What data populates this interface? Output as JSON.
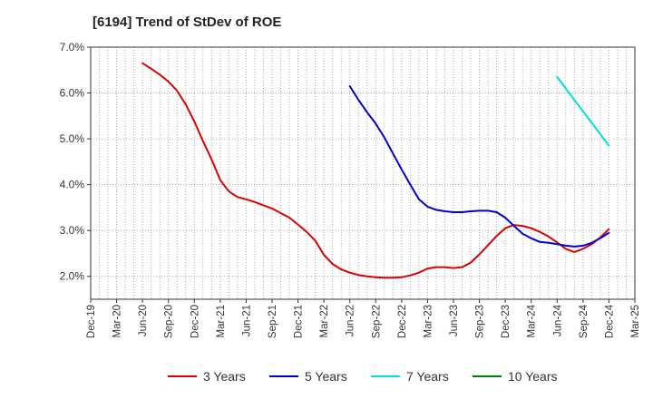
{
  "chart_data": {
    "type": "line",
    "title": "[6194]  Trend of StDev of ROE",
    "y_ticks": [
      "2.0%",
      "3.0%",
      "4.0%",
      "5.0%",
      "6.0%",
      "7.0%"
    ],
    "ylim": [
      1.5,
      7.0
    ],
    "x_ticks": [
      "Dec-19",
      "Mar-20",
      "Jun-20",
      "Sep-20",
      "Dec-20",
      "Mar-21",
      "Jun-21",
      "Sep-21",
      "Dec-21",
      "Mar-22",
      "Jun-22",
      "Sep-22",
      "Dec-22",
      "Mar-23",
      "Jun-23",
      "Sep-23",
      "Dec-23",
      "Mar-24",
      "Jun-24",
      "Sep-24",
      "Dec-24",
      "Mar-25"
    ],
    "grid": true,
    "legend_position": "bottom",
    "series": [
      {
        "name": "3 Years",
        "color": "#dd0000",
        "values": [
          [
            "Jun-20",
            6.65
          ],
          [
            "Jul-20",
            6.53
          ],
          [
            "Aug-20",
            6.4
          ],
          [
            "Sep-20",
            6.25
          ],
          [
            "Oct-20",
            6.05
          ],
          [
            "Nov-20",
            5.75
          ],
          [
            "Dec-20",
            5.38
          ],
          [
            "Jan-21",
            4.95
          ],
          [
            "Feb-21",
            4.55
          ],
          [
            "Mar-21",
            4.1
          ],
          [
            "Apr-21",
            3.85
          ],
          [
            "May-21",
            3.73
          ],
          [
            "Jun-21",
            3.68
          ],
          [
            "Jul-21",
            3.62
          ],
          [
            "Aug-21",
            3.55
          ],
          [
            "Sep-21",
            3.48
          ],
          [
            "Oct-21",
            3.38
          ],
          [
            "Nov-21",
            3.28
          ],
          [
            "Dec-21",
            3.13
          ],
          [
            "Jan-22",
            2.97
          ],
          [
            "Feb-22",
            2.78
          ],
          [
            "Mar-22",
            2.47
          ],
          [
            "Apr-22",
            2.27
          ],
          [
            "May-22",
            2.15
          ],
          [
            "Jun-22",
            2.08
          ],
          [
            "Jul-22",
            2.03
          ],
          [
            "Aug-22",
            2.0
          ],
          [
            "Sep-22",
            1.98
          ],
          [
            "Oct-22",
            1.97
          ],
          [
            "Nov-22",
            1.97
          ],
          [
            "Dec-22",
            1.98
          ],
          [
            "Jan-23",
            2.02
          ],
          [
            "Feb-23",
            2.08
          ],
          [
            "Mar-23",
            2.17
          ],
          [
            "Apr-23",
            2.2
          ],
          [
            "May-23",
            2.2
          ],
          [
            "Jun-23",
            2.18
          ],
          [
            "Jul-23",
            2.2
          ],
          [
            "Aug-23",
            2.3
          ],
          [
            "Sep-23",
            2.48
          ],
          [
            "Oct-23",
            2.68
          ],
          [
            "Nov-23",
            2.88
          ],
          [
            "Dec-23",
            3.05
          ],
          [
            "Jan-24",
            3.12
          ],
          [
            "Feb-24",
            3.1
          ],
          [
            "Mar-24",
            3.05
          ],
          [
            "Apr-24",
            2.97
          ],
          [
            "May-24",
            2.87
          ],
          [
            "Jun-24",
            2.74
          ],
          [
            "Jul-24",
            2.6
          ],
          [
            "Aug-24",
            2.53
          ],
          [
            "Sep-24",
            2.6
          ],
          [
            "Oct-24",
            2.7
          ],
          [
            "Nov-24",
            2.85
          ],
          [
            "Dec-24",
            3.03
          ]
        ]
      },
      {
        "name": "5 Years",
        "color": "#0000cc",
        "values": [
          [
            "Jun-22",
            6.15
          ],
          [
            "Jul-22",
            5.85
          ],
          [
            "Aug-22",
            5.58
          ],
          [
            "Sep-22",
            5.33
          ],
          [
            "Oct-22",
            5.03
          ],
          [
            "Nov-22",
            4.68
          ],
          [
            "Dec-22",
            4.33
          ],
          [
            "Jan-23",
            4.0
          ],
          [
            "Feb-23",
            3.68
          ],
          [
            "Mar-23",
            3.52
          ],
          [
            "Apr-23",
            3.45
          ],
          [
            "May-23",
            3.42
          ],
          [
            "Jun-23",
            3.4
          ],
          [
            "Jul-23",
            3.4
          ],
          [
            "Aug-23",
            3.42
          ],
          [
            "Sep-23",
            3.43
          ],
          [
            "Oct-23",
            3.43
          ],
          [
            "Nov-23",
            3.4
          ],
          [
            "Dec-23",
            3.28
          ],
          [
            "Jan-24",
            3.1
          ],
          [
            "Feb-24",
            2.93
          ],
          [
            "Mar-24",
            2.83
          ],
          [
            "Apr-24",
            2.75
          ],
          [
            "May-24",
            2.73
          ],
          [
            "Jun-24",
            2.7
          ],
          [
            "Jul-24",
            2.67
          ],
          [
            "Aug-24",
            2.65
          ],
          [
            "Sep-24",
            2.67
          ],
          [
            "Oct-24",
            2.73
          ],
          [
            "Nov-24",
            2.83
          ],
          [
            "Dec-24",
            2.95
          ]
        ]
      },
      {
        "name": "7 Years",
        "color": "#00e0e0",
        "values": [
          [
            "Jun-24",
            6.35
          ],
          [
            "Jul-24",
            6.1
          ],
          [
            "Aug-24",
            5.85
          ],
          [
            "Sep-24",
            5.6
          ],
          [
            "Oct-24",
            5.35
          ],
          [
            "Nov-24",
            5.1
          ],
          [
            "Dec-24",
            4.85
          ]
        ]
      },
      {
        "name": "10 Years",
        "color": "#008000",
        "values": []
      }
    ]
  }
}
